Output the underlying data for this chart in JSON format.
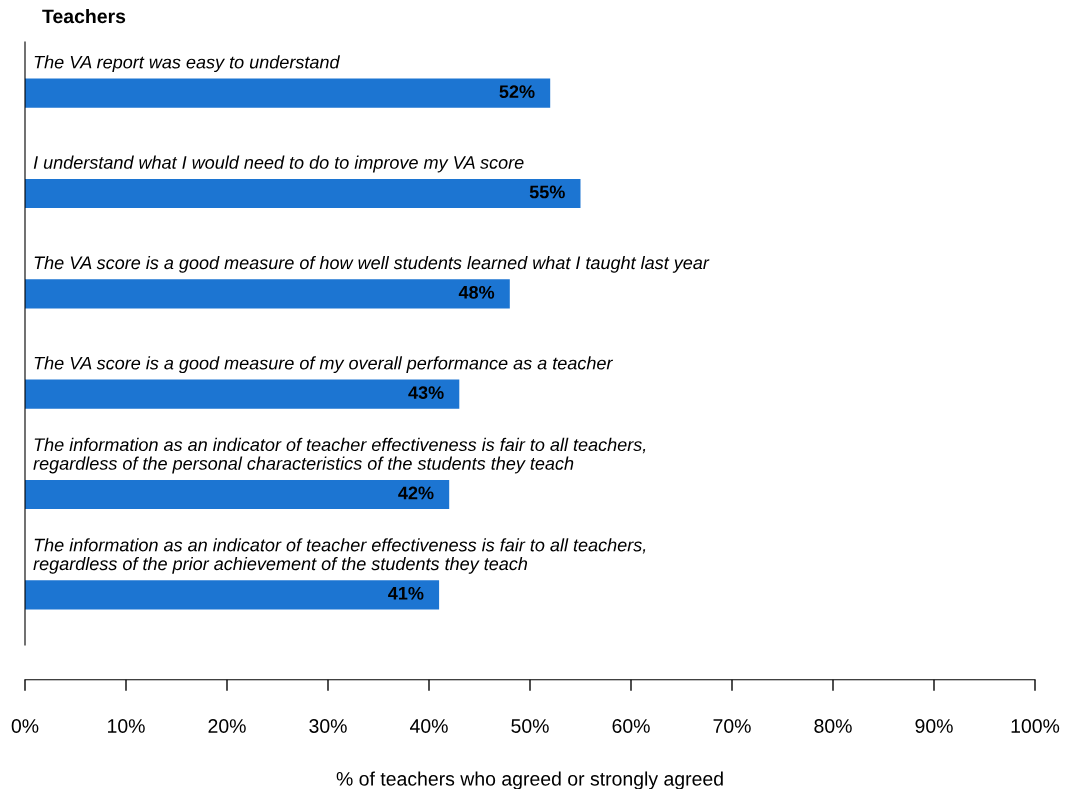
{
  "chart_data": {
    "type": "bar",
    "orientation": "horizontal",
    "title": "Teachers",
    "categories": [
      "The VA report was easy to understand",
      "I understand what I would need to do to improve my VA score",
      "The VA score is a good measure of how well students learned what I taught last year",
      "The VA score is a good measure of my overall performance as a teacher",
      "The information as an indicator of teacher effectiveness is fair to all teachers,\nregardless of the personal characteristics of the students they teach",
      "The information as an indicator of teacher effectiveness is fair to all teachers,\nregardless of the prior achievement of the students they teach"
    ],
    "values": [
      52,
      55,
      48,
      43,
      42,
      41
    ],
    "color": "#1c75d2",
    "value_labels": [
      "52%",
      "55%",
      "48%",
      "43%",
      "42%",
      "41%"
    ],
    "xlim": [
      0,
      100
    ],
    "xticks": [
      {
        "value": 0,
        "label": "0%"
      },
      {
        "value": 10,
        "label": "10%"
      },
      {
        "value": 20,
        "label": "20%"
      },
      {
        "value": 30,
        "label": "30%"
      },
      {
        "value": 40,
        "label": "40%"
      },
      {
        "value": 50,
        "label": "50%"
      },
      {
        "value": 60,
        "label": "60%"
      },
      {
        "value": 70,
        "label": "70%"
      },
      {
        "value": 80,
        "label": "80%"
      },
      {
        "value": 90,
        "label": "90%"
      },
      {
        "value": 100,
        "label": "100%"
      }
    ],
    "xlabel": "% of teachers who agreed or strongly agreed",
    "grid": false,
    "legend": false
  }
}
